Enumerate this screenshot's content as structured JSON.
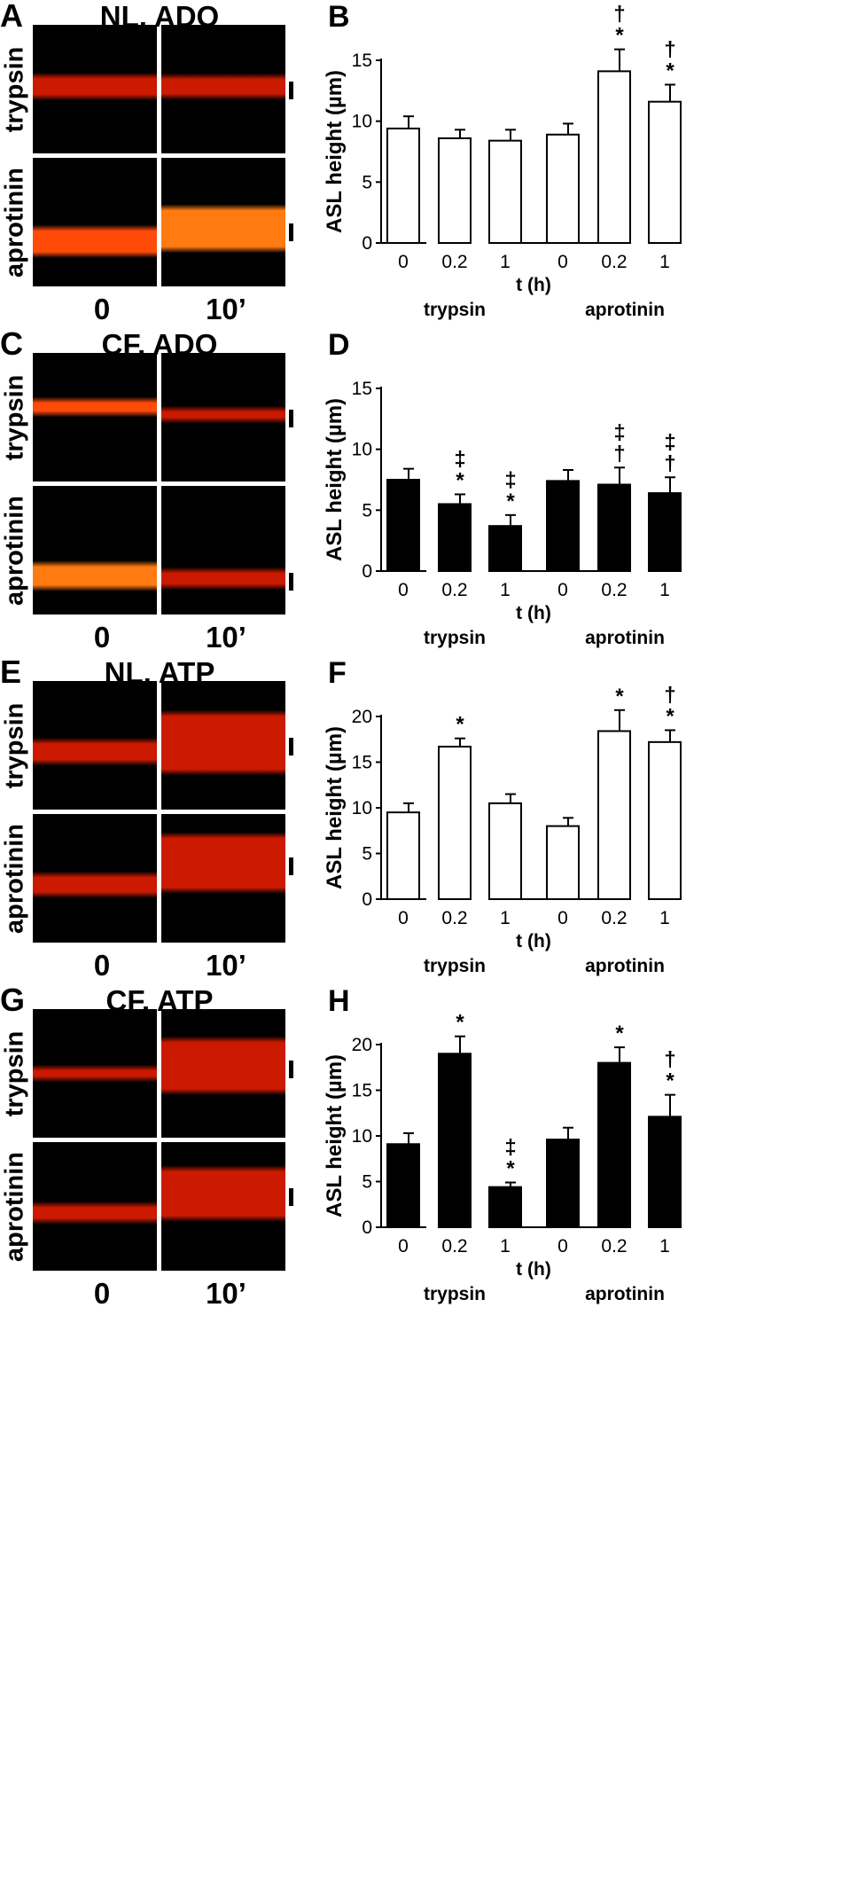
{
  "panels": [
    {
      "letter": "A",
      "title": "NL, ADO",
      "rows": [
        "trypsin",
        "aprotinin"
      ],
      "times": [
        "0",
        "10’"
      ]
    },
    {
      "letter": "C",
      "title": "CF, ADO",
      "rows": [
        "trypsin",
        "aprotinin"
      ],
      "times": [
        "0",
        "10’"
      ]
    },
    {
      "letter": "E",
      "title": "NL, ATP",
      "rows": [
        "trypsin",
        "aprotinin"
      ],
      "times": [
        "0",
        "10’"
      ]
    },
    {
      "letter": "G",
      "title": "CF, ATP",
      "rows": [
        "trypsin",
        "aprotinin"
      ],
      "times": [
        "0",
        "10’"
      ]
    }
  ],
  "colors": {
    "micro_bg": "#000000",
    "layer_dim": "#cc1a00",
    "layer_bright": "#ff7a10",
    "bar_open": "#ffffff",
    "bar_filled": "#000000"
  },
  "chart_data": [
    {
      "letter": "B",
      "type": "bar",
      "fill": "open",
      "ylabel": "ASL height (µm)",
      "xlabel": "t (h)",
      "ylim": [
        0,
        15
      ],
      "yticks": [
        0,
        5,
        10,
        15
      ],
      "groups": [
        "trypsin",
        "aprotinin"
      ],
      "categories": [
        "0",
        "0.2",
        "1",
        "0",
        "0.2",
        "1"
      ],
      "values": [
        9.4,
        8.6,
        8.4,
        8.9,
        14.1,
        11.6
      ],
      "errors": [
        1.0,
        0.7,
        0.9,
        0.9,
        1.8,
        1.4
      ],
      "annotations": [
        "",
        "",
        "",
        "",
        "†\n*",
        "†\n*"
      ]
    },
    {
      "letter": "D",
      "type": "bar",
      "fill": "filled",
      "ylabel": "ASL height (µm)",
      "xlabel": "t (h)",
      "ylim": [
        0,
        15
      ],
      "yticks": [
        0,
        5,
        10,
        15
      ],
      "groups": [
        "trypsin",
        "aprotinin"
      ],
      "categories": [
        "0",
        "0.2",
        "1",
        "0",
        "0.2",
        "1"
      ],
      "values": [
        7.5,
        5.5,
        3.7,
        7.4,
        7.1,
        6.4
      ],
      "errors": [
        0.9,
        0.8,
        0.9,
        0.9,
        1.4,
        1.3
      ],
      "annotations": [
        "",
        "‡\n*",
        "‡\n*",
        "",
        "‡\n†",
        "‡\n†"
      ]
    },
    {
      "letter": "F",
      "type": "bar",
      "fill": "open",
      "ylabel": "ASL height (µm)",
      "xlabel": "t (h)",
      "ylim": [
        0,
        20
      ],
      "yticks": [
        0,
        5,
        10,
        15,
        20
      ],
      "groups": [
        "trypsin",
        "aprotinin"
      ],
      "categories": [
        "0",
        "0.2",
        "1",
        "0",
        "0.2",
        "1"
      ],
      "values": [
        9.5,
        16.7,
        10.5,
        8.0,
        18.4,
        17.2
      ],
      "errors": [
        1.0,
        0.9,
        1.0,
        0.9,
        2.3,
        1.3
      ],
      "annotations": [
        "",
        "*",
        "",
        "",
        "*",
        "†\n*"
      ]
    },
    {
      "letter": "H",
      "type": "bar",
      "fill": "filled",
      "ylabel": "ASL height (µm)",
      "xlabel": "t (h)",
      "ylim": [
        0,
        20
      ],
      "yticks": [
        0,
        5,
        10,
        15,
        20
      ],
      "groups": [
        "trypsin",
        "aprotinin"
      ],
      "categories": [
        "0",
        "0.2",
        "1",
        "0",
        "0.2",
        "1"
      ],
      "values": [
        9.1,
        19.0,
        4.4,
        9.6,
        18.0,
        12.1
      ],
      "errors": [
        1.2,
        1.9,
        0.5,
        1.3,
        1.7,
        2.4
      ],
      "annotations": [
        "",
        "*",
        "‡\n*",
        "",
        "*",
        "†\n*"
      ]
    }
  ]
}
